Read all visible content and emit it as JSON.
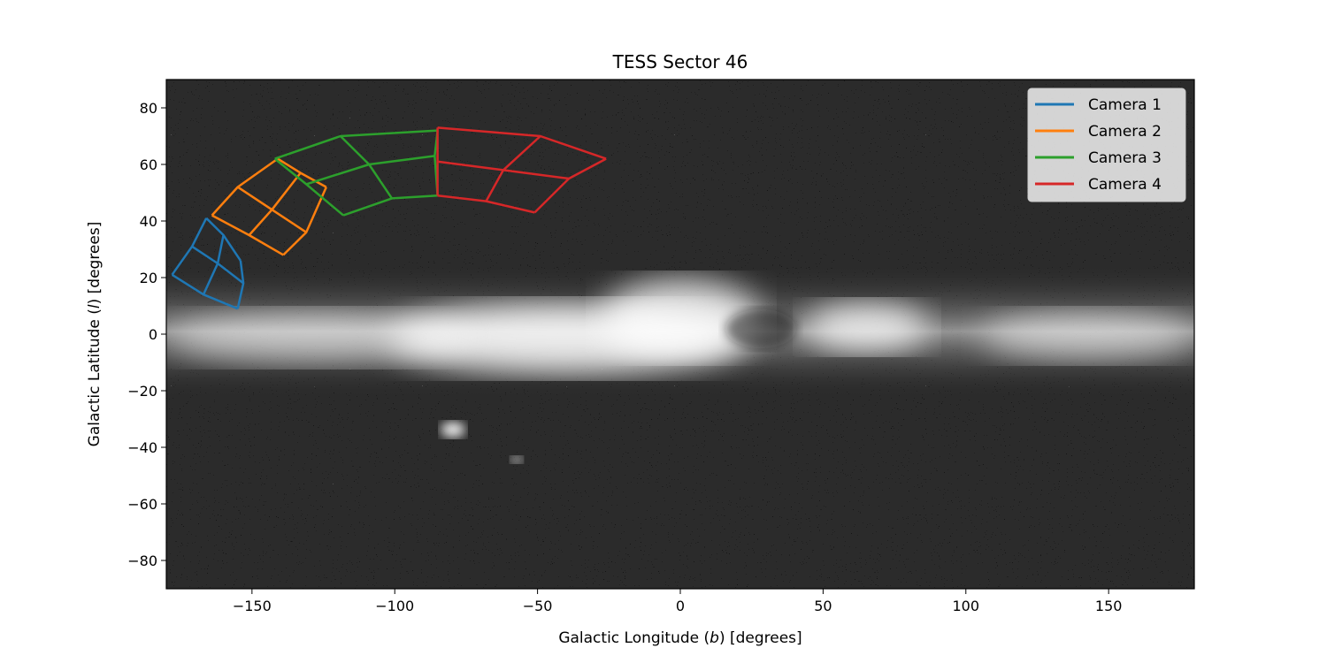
{
  "chart_data": {
    "type": "line",
    "title": "TESS Sector 46",
    "xlabel_pre": "Galactic Longitude (",
    "xlabel_var": "b",
    "xlabel_post": ") [degrees]",
    "ylabel_pre": "Galactic Latitude (",
    "ylabel_var": "l",
    "ylabel_post": ") [degrees]",
    "xlim": [
      -180,
      180
    ],
    "ylim": [
      -90,
      90
    ],
    "xticks": [
      -150,
      -100,
      -50,
      0,
      50,
      100,
      150
    ],
    "yticks": [
      -80,
      -60,
      -40,
      -20,
      0,
      20,
      40,
      60,
      80
    ],
    "xtick_labels": [
      "−150",
      "−100",
      "−50",
      "0",
      "50",
      "100",
      "150"
    ],
    "ytick_labels": [
      "−80",
      "−60",
      "−40",
      "−20",
      "0",
      "20",
      "40",
      "60",
      "80"
    ],
    "grid": false,
    "legend_position": "top-right",
    "background": "grayscale all-sky star map with bright Milky Way band along latitude 0",
    "series": [
      {
        "name": "Camera 1",
        "color": "#1f77b4",
        "grid_corners": [
          [
            [
              -166,
              41
            ],
            [
              -160,
              35
            ],
            [
              -154,
              26
            ]
          ],
          [
            [
              -171,
              31
            ],
            [
              -162,
              25
            ],
            [
              -153,
              18
            ]
          ],
          [
            [
              -178,
              21
            ],
            [
              -167,
              14
            ],
            [
              -155,
              9
            ]
          ]
        ]
      },
      {
        "name": "Camera 2",
        "color": "#ff7f0e",
        "grid_corners": [
          [
            [
              -141,
              62
            ],
            [
              -133,
              57
            ],
            [
              -124,
              52
            ]
          ],
          [
            [
              -155,
              52
            ],
            [
              -143,
              44
            ],
            [
              -131,
              36
            ]
          ],
          [
            [
              -164,
              42
            ],
            [
              -151,
              35
            ],
            [
              -139,
              28
            ]
          ]
        ]
      },
      {
        "name": "Camera 3",
        "color": "#2ca02c",
        "grid_corners": [
          [
            [
              -85,
              72
            ],
            [
              -86,
              63
            ],
            [
              -85,
              49
            ]
          ],
          [
            [
              -119,
              70
            ],
            [
              -109,
              60
            ],
            [
              -101,
              48
            ]
          ],
          [
            [
              -142,
              62
            ],
            [
              -131,
              53
            ],
            [
              -118,
              42
            ]
          ]
        ]
      },
      {
        "name": "Camera 4",
        "color": "#d62728",
        "grid_corners": [
          [
            [
              -26,
              62
            ],
            [
              -39,
              55
            ],
            [
              -51,
              43
            ]
          ],
          [
            [
              -49,
              70
            ],
            [
              -62,
              58
            ],
            [
              -68,
              47
            ]
          ],
          [
            [
              -85,
              73
            ],
            [
              -85,
              61
            ],
            [
              -85,
              49
            ]
          ]
        ]
      }
    ]
  }
}
